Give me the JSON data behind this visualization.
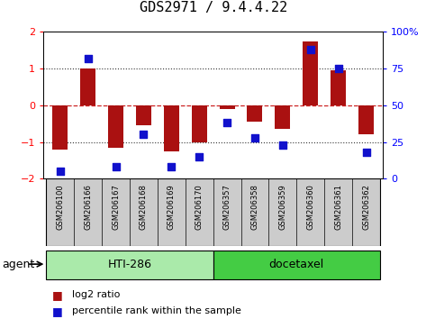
{
  "title": "GDS2971 / 9.4.4.22",
  "samples": [
    "GSM206100",
    "GSM206166",
    "GSM206167",
    "GSM206168",
    "GSM206169",
    "GSM206170",
    "GSM206357",
    "GSM206358",
    "GSM206359",
    "GSM206360",
    "GSM206361",
    "GSM206362"
  ],
  "log2_ratio": [
    -1.2,
    1.0,
    -1.15,
    -0.55,
    -1.25,
    -1.0,
    -0.1,
    -0.45,
    -0.65,
    1.75,
    0.95,
    -0.8
  ],
  "percentile": [
    5,
    82,
    8,
    30,
    8,
    15,
    38,
    28,
    23,
    88,
    75,
    18
  ],
  "ylim": [
    -2,
    2
  ],
  "yticks_left": [
    -2,
    -1,
    0,
    1,
    2
  ],
  "yticks_right": [
    0,
    25,
    50,
    75,
    100
  ],
  "ytick_labels_right": [
    "0",
    "25",
    "50",
    "75",
    "100%"
  ],
  "agent_label": "agent",
  "hti286_label": "HTI-286",
  "docetaxel_label": "docetaxel",
  "legend_log2": "log2 ratio",
  "legend_pct": "percentile rank within the sample",
  "bar_color": "#aa1111",
  "dot_color": "#1111cc",
  "hline0_color": "#cc2222",
  "hline1_color": "#333333",
  "hti286_color": "#aaeaaa",
  "docetaxel_color": "#44cc44",
  "sample_box_color": "#cccccc",
  "bg_color": "#ffffff",
  "bar_width": 0.55,
  "dot_size": 40,
  "title_fontsize": 11,
  "tick_fontsize": 8,
  "sample_fontsize": 6,
  "agent_fontsize": 9,
  "legend_fontsize": 8
}
